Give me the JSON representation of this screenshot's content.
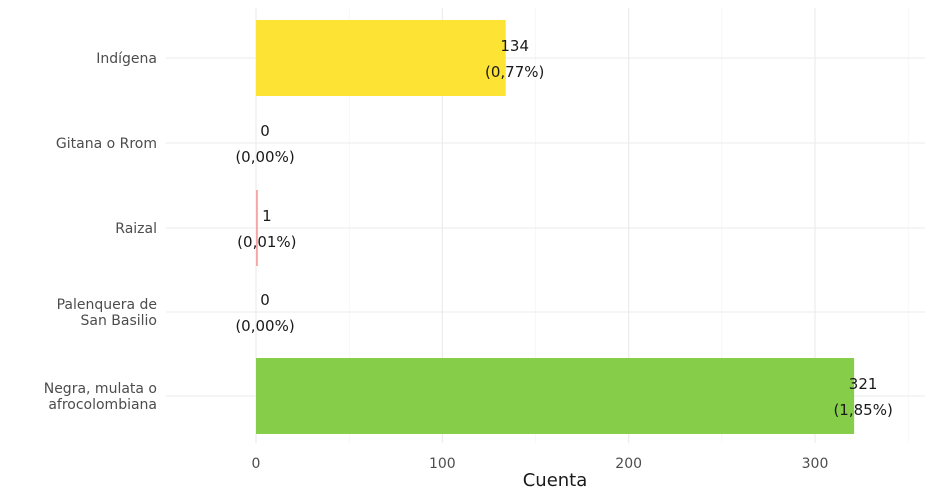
{
  "chart_data": {
    "type": "bar",
    "orientation": "horizontal",
    "categories": [
      "Indígena",
      "Gitana o Rrom",
      "Raizal",
      "Palenquera de San Basilio",
      "Negra, mulata o afrocolombiana"
    ],
    "category_lines": [
      [
        "Indígena"
      ],
      [
        "Gitana o Rrom"
      ],
      [
        "Raizal"
      ],
      [
        "Palenquera de",
        "San Basilio"
      ],
      [
        "Negra, mulata o",
        "afrocolombiana"
      ]
    ],
    "values": [
      134,
      0,
      1,
      0,
      321
    ],
    "value_labels": [
      "134",
      "0",
      "1",
      "0",
      "321"
    ],
    "percent_labels": [
      "(0,77%)",
      "(0,00%)",
      "(0,01%)",
      "(0,00%)",
      "(1,85%)"
    ],
    "colors": [
      "#FDE333",
      "#F4A6A6",
      "#F4A6A6",
      "#56B4E9",
      "#86CE4A"
    ],
    "xlabel": "Cuenta",
    "ylabel": "",
    "xlim": [
      0,
      350
    ],
    "xticks": [
      0,
      100,
      200,
      300
    ],
    "xtick_labels": [
      "0",
      "100",
      "200",
      "300"
    ],
    "grid": true,
    "legend": "none"
  }
}
